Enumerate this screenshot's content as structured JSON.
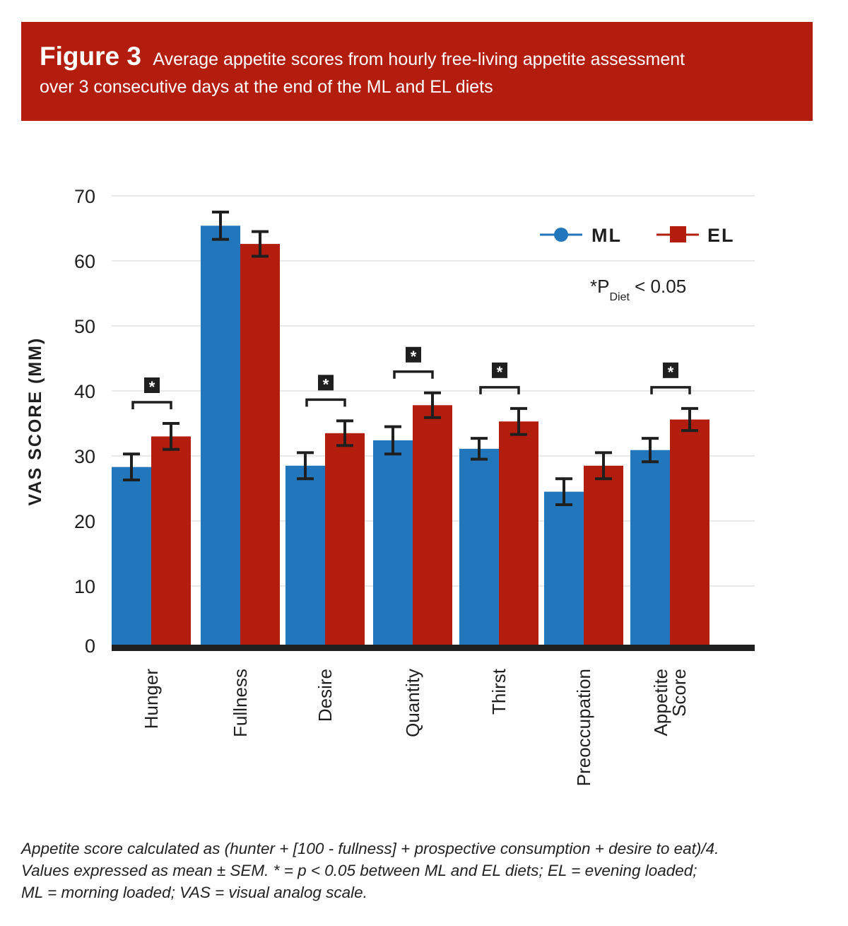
{
  "figure": {
    "label": "Figure 3",
    "title_line1": "Average appetite scores from hourly free-living appetite assessment",
    "title_line2": "over 3 consecutive days at the end of the ML and EL diets"
  },
  "colors": {
    "banner": "#b31d0d",
    "ML": "#2276bb",
    "EL": "#b31d0d",
    "ink": "#1f1f1f",
    "grid": "#e8e8e8"
  },
  "chart_data": {
    "type": "bar",
    "title": "Average appetite scores from hourly free-living appetite assessment over 3 consecutive days at the end of the ML and EL diets",
    "xlabel": "",
    "ylabel": "VAS SCORE (MM)",
    "ylim": [
      0,
      70
    ],
    "yticks": [
      "0",
      "10",
      "20",
      "30",
      "40",
      "50",
      "60",
      "70"
    ],
    "grid": true,
    "legend_position": "top-right",
    "categories": [
      [
        "Hunger"
      ],
      [
        "Fullness"
      ],
      [
        "Desire"
      ],
      [
        "Quantity"
      ],
      [
        "Thirst"
      ],
      [
        "Preoccupation"
      ],
      [
        "Appetite",
        "Score"
      ]
    ],
    "series": [
      {
        "name": "ML",
        "marker": "circle",
        "values": [
          28.3,
          65.4,
          28.5,
          32.4,
          31.1,
          24.5,
          30.9
        ],
        "sem": [
          2.0,
          2.1,
          2.0,
          2.1,
          1.6,
          2.0,
          1.8
        ]
      },
      {
        "name": "EL",
        "marker": "square",
        "values": [
          33.0,
          62.6,
          33.5,
          37.8,
          35.3,
          28.5,
          35.6
        ],
        "sem": [
          2.0,
          1.9,
          1.9,
          1.9,
          2.0,
          2.0,
          1.7
        ]
      }
    ],
    "significant": [
      true,
      false,
      true,
      true,
      true,
      false,
      true
    ],
    "significance_symbol": "*",
    "annotation": {
      "prefix": "*P",
      "subscript": "Diet",
      "suffix": " < 0.05"
    }
  },
  "footnote": [
    "Appetite score calculated as (hunter + [100 - fullness] + prospective consumption + desire to eat)/4.",
    "Values expressed as mean ± SEM. * = p < 0.05 between ML and EL diets; EL = evening loaded;",
    "ML = morning loaded; VAS = visual analog scale."
  ]
}
